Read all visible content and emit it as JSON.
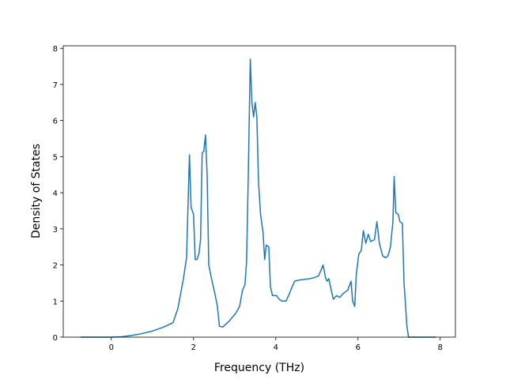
{
  "chart_data": {
    "type": "line",
    "xlabel": "Frequency (THz)",
    "ylabel": "Density of States",
    "color": "#1f77b4",
    "x": [
      -0.75,
      0,
      0.25,
      0.5,
      0.75,
      1.0,
      1.25,
      1.5,
      1.62,
      1.75,
      1.83,
      1.9,
      1.94,
      2.0,
      2.04,
      2.08,
      2.13,
      2.17,
      2.21,
      2.25,
      2.29,
      2.33,
      2.37,
      2.44,
      2.52,
      2.58,
      2.63,
      2.71,
      2.87,
      3.02,
      3.12,
      3.19,
      3.25,
      3.29,
      3.33,
      3.38,
      3.42,
      3.46,
      3.5,
      3.54,
      3.58,
      3.63,
      3.69,
      3.73,
      3.77,
      3.83,
      3.87,
      3.92,
      4.02,
      4.08,
      4.15,
      4.25,
      4.33,
      4.4,
      4.46,
      4.56,
      4.69,
      4.83,
      4.94,
      5.04,
      5.1,
      5.15,
      5.21,
      5.25,
      5.29,
      5.35,
      5.4,
      5.48,
      5.56,
      5.63,
      5.75,
      5.83,
      5.87,
      5.92,
      5.96,
      6.02,
      6.08,
      6.13,
      6.19,
      6.25,
      6.31,
      6.4,
      6.46,
      6.52,
      6.6,
      6.67,
      6.73,
      6.79,
      6.85,
      6.88,
      6.92,
      6.98,
      7.02,
      7.08,
      7.12,
      7.15,
      7.19,
      7.23,
      7.9
    ],
    "values": [
      0,
      0,
      0.01,
      0.05,
      0.1,
      0.17,
      0.27,
      0.4,
      0.8,
      1.6,
      2.2,
      5.05,
      3.6,
      3.4,
      2.15,
      2.15,
      2.3,
      2.7,
      5.1,
      5.15,
      5.6,
      4.5,
      2.0,
      1.6,
      1.2,
      0.85,
      0.3,
      0.28,
      0.45,
      0.65,
      0.85,
      1.3,
      1.45,
      2.1,
      4.4,
      7.7,
      6.5,
      6.1,
      6.5,
      6.1,
      4.3,
      3.4,
      2.9,
      2.15,
      2.55,
      2.5,
      1.4,
      1.15,
      1.15,
      1.05,
      1.0,
      1.0,
      1.2,
      1.4,
      1.55,
      1.58,
      1.6,
      1.62,
      1.65,
      1.7,
      1.85,
      2.0,
      1.65,
      1.55,
      1.62,
      1.3,
      1.05,
      1.15,
      1.1,
      1.2,
      1.3,
      1.55,
      1.0,
      0.85,
      1.75,
      2.3,
      2.4,
      2.95,
      2.6,
      2.85,
      2.65,
      2.7,
      3.2,
      2.6,
      2.25,
      2.2,
      2.25,
      2.5,
      3.2,
      4.45,
      3.45,
      3.4,
      3.2,
      3.15,
      1.5,
      1.0,
      0.3,
      0,
      0
    ],
    "xlim": [
      -1.17,
      8.37
    ],
    "ylim": [
      0,
      8.07
    ],
    "xticks": [
      0,
      2,
      4,
      6,
      8
    ],
    "yticks": [
      0,
      1,
      2,
      3,
      4,
      5,
      6,
      7,
      8
    ]
  }
}
